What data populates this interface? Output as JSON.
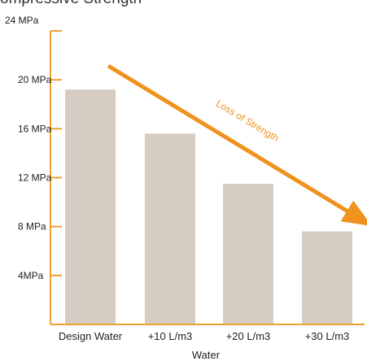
{
  "chart_data": {
    "type": "bar",
    "title": "",
    "xlabel": "Water",
    "ylabel": "",
    "categories": [
      "Design Water",
      "+10 L/m3",
      "+20 L/m3",
      "+30 L/m3"
    ],
    "values": [
      19.2,
      15.6,
      11.5,
      7.6
    ],
    "ylim": [
      0,
      24
    ],
    "yticks": [
      {
        "value": 4,
        "label": "4MPa"
      },
      {
        "value": 8,
        "label": "8 MPa"
      },
      {
        "value": 12,
        "label": "12 MPa"
      },
      {
        "value": 16,
        "label": "16 MPa"
      },
      {
        "value": 20,
        "label": "20 MPa"
      },
      {
        "value": 24,
        "label": "24 MPa"
      }
    ],
    "grid": false,
    "annotation": {
      "text": "Loss of Strength",
      "type": "arrow",
      "direction": "down-right"
    },
    "colors": {
      "bar": "#d6ccc2",
      "axis": "#f0a030",
      "arrow": "#f0921e",
      "annotation_text": "#f0921e"
    }
  },
  "top_fragment": "ompressive Strength"
}
